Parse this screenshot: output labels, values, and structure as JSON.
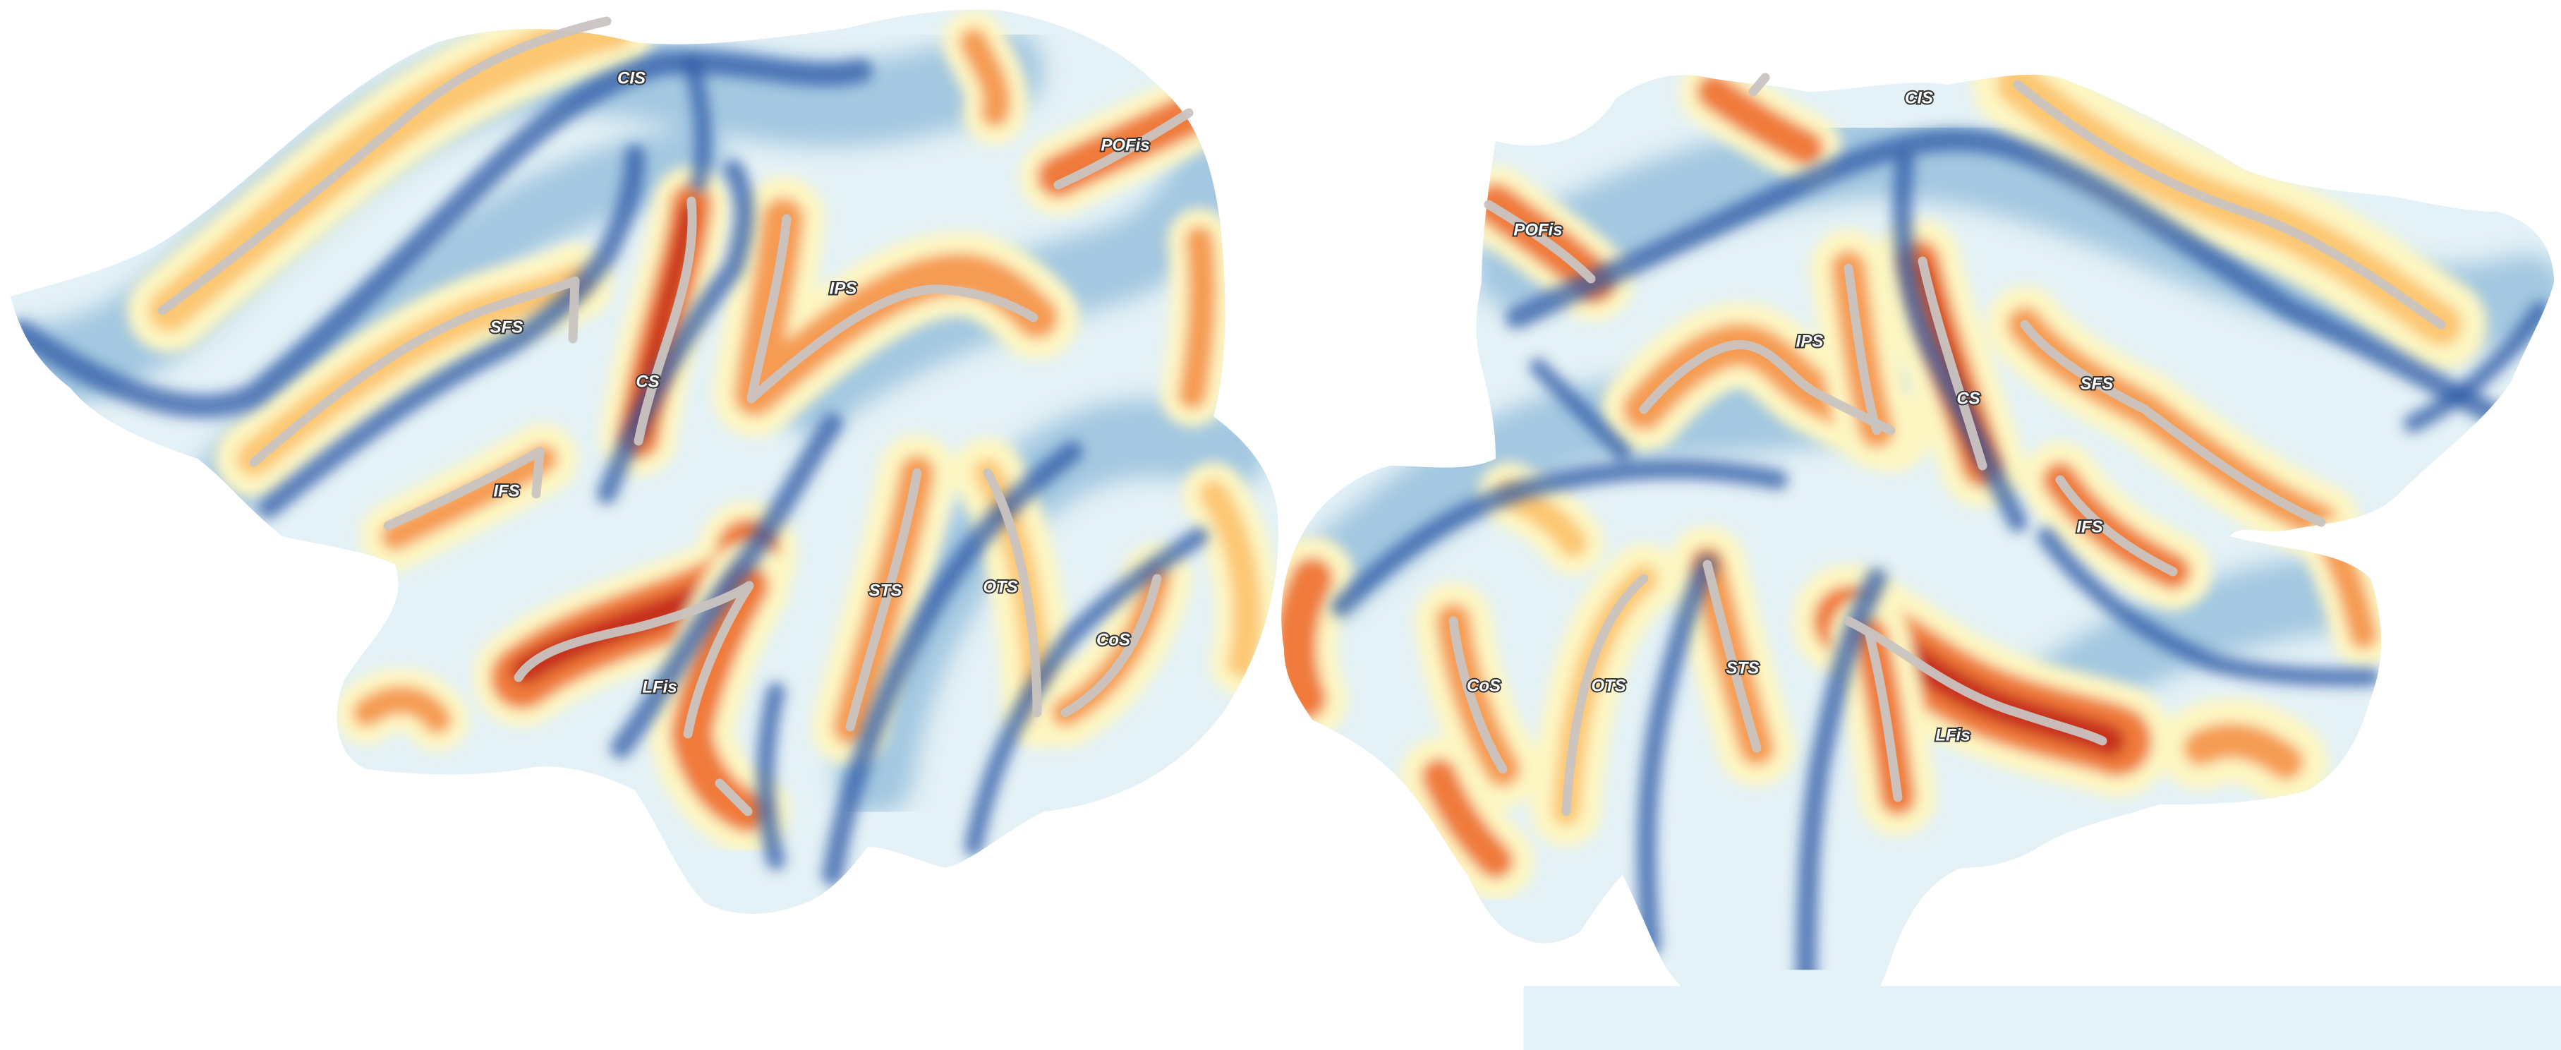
{
  "colors": {
    "deep_sulcus": "#c62d1f",
    "sulcus": "#ef7a3b",
    "sulcus_light": "#fcc773",
    "neutral": "#fdf6c2",
    "gyrus_light": "#d9ecf4",
    "gyrus": "#8fc1de",
    "gyrus_crown": "#2e5aa6",
    "sulcus_line": "#c9c4c1"
  },
  "hemispheres": [
    {
      "side": "left",
      "labels": {
        "cis": "CIS",
        "pofis": "POFis",
        "sfs": "SFS",
        "ips": "IPS",
        "cs": "CS",
        "ifs": "IFS",
        "sts": "STS",
        "ots": "OTS",
        "cos": "CoS",
        "lfis": "LFis"
      }
    },
    {
      "side": "right",
      "labels": {
        "cis": "CIS",
        "pofis": "POFis",
        "ips": "IPS",
        "cs": "CS",
        "sfs": "SFS",
        "ifs": "IFS",
        "cos": "CoS",
        "ots": "OTS",
        "sts": "STS",
        "lfis": "LFis"
      }
    }
  ]
}
